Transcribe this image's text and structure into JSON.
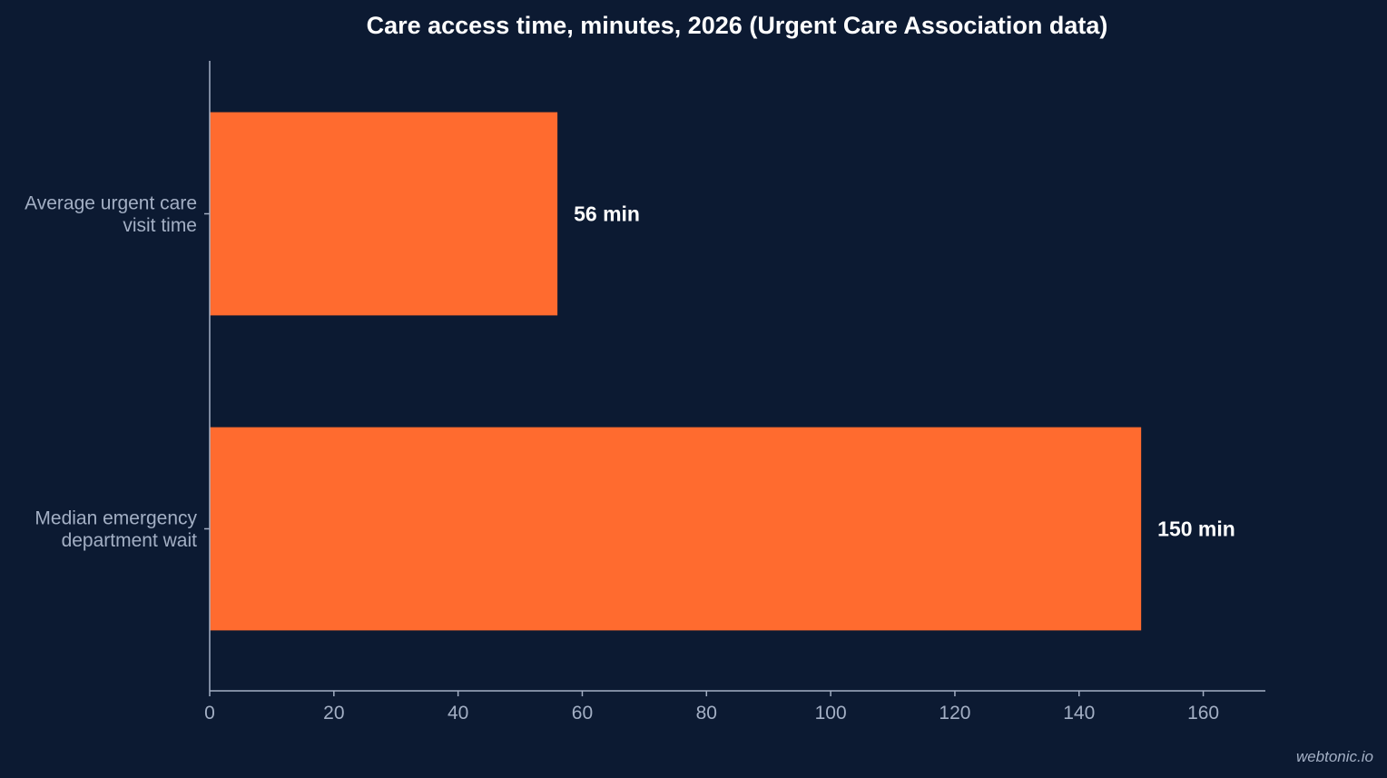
{
  "chart_data": {
    "type": "bar",
    "orientation": "horizontal",
    "title": "Care access time, minutes, 2026 (Urgent Care Association data)",
    "categories": [
      [
        "Average urgent care",
        "visit time"
      ],
      [
        "Median emergency",
        "department wait"
      ]
    ],
    "values": [
      56,
      150
    ],
    "value_labels": [
      "56 min",
      "150 min"
    ],
    "xlim": [
      0,
      170
    ],
    "xticks": [
      0,
      20,
      40,
      60,
      80,
      100,
      120,
      140,
      160
    ],
    "grid": false,
    "bar_color": "#ff6b2f"
  },
  "credit": "webtonic.io"
}
